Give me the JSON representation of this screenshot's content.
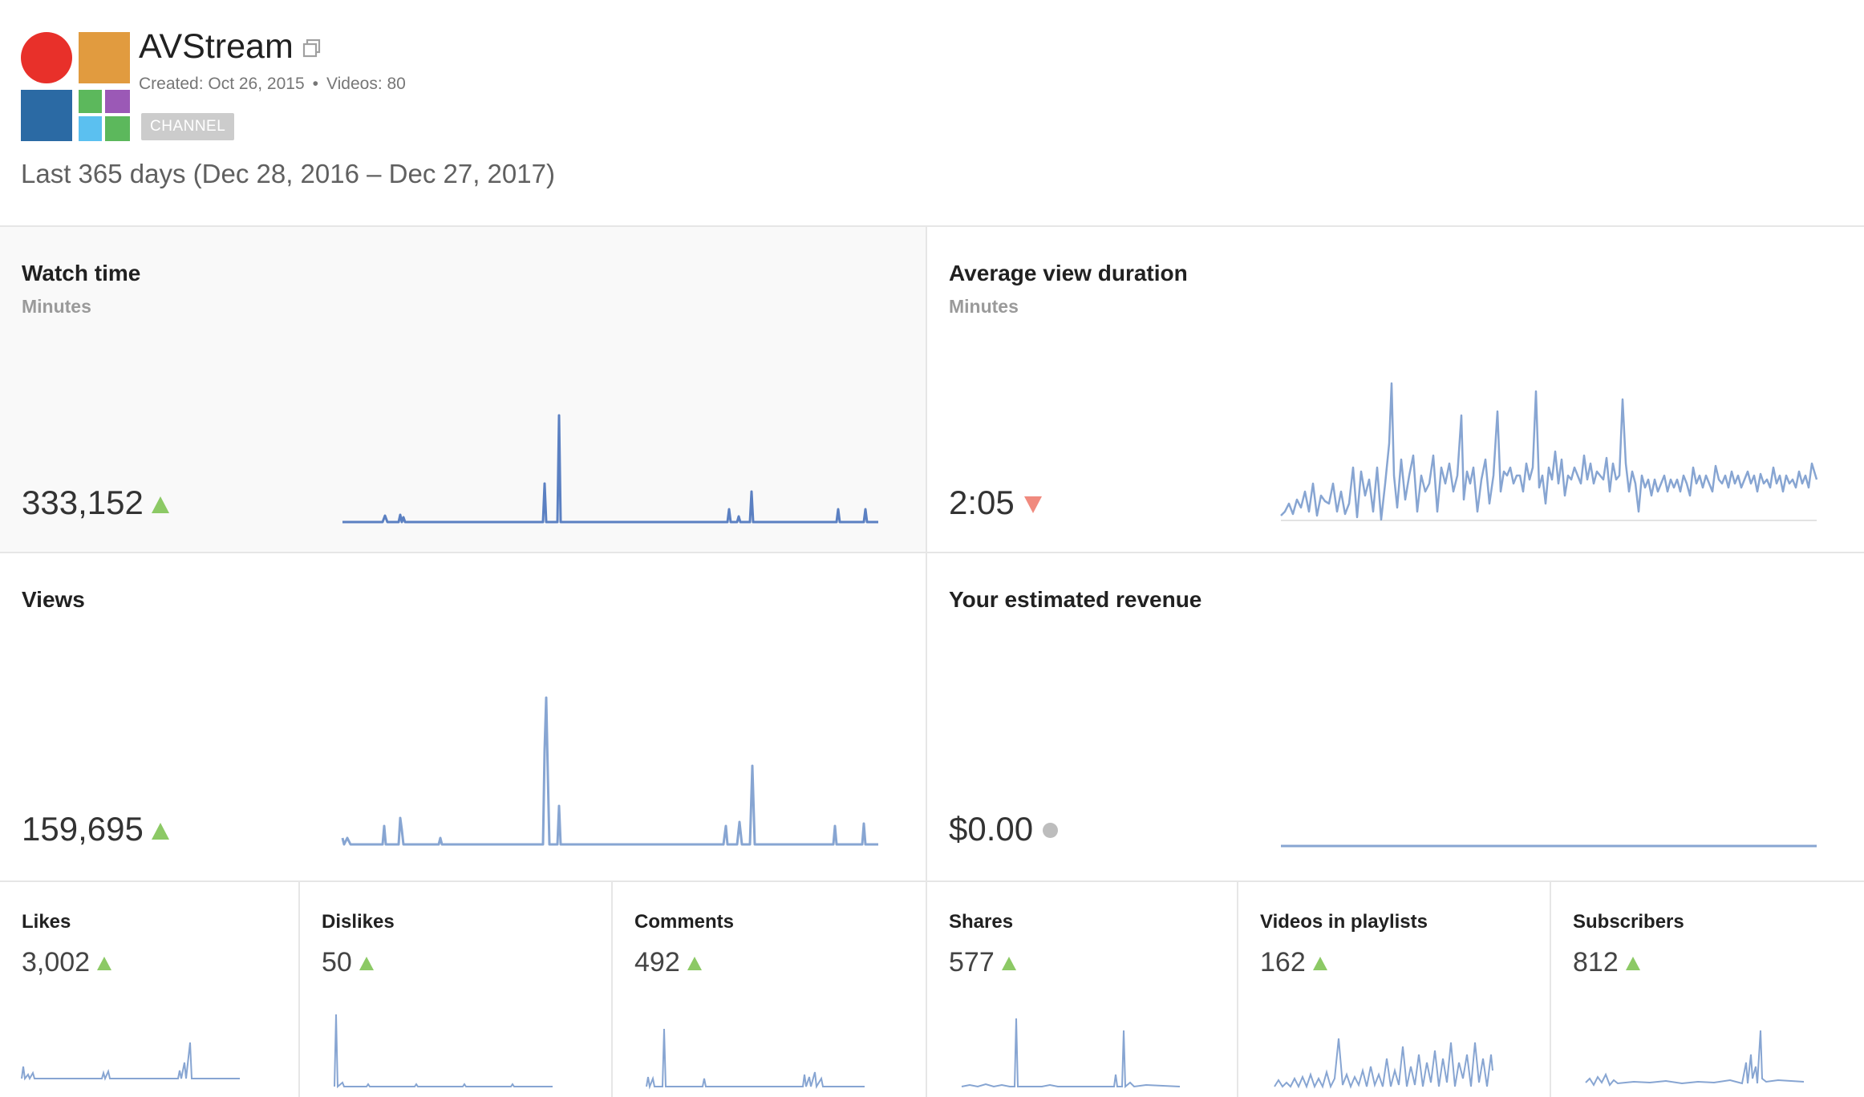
{
  "channel": {
    "name": "AVStream",
    "created": "Created: Oct 26, 2015",
    "videos": "Videos: 80",
    "badge": "CHANNEL",
    "colors": {
      "red": "#e8302a",
      "orange": "#e19b3f",
      "blue": "#2b6aa4",
      "green": "#5cb85c",
      "purple": "#9b59b6",
      "lightblue": "#5bc0f0"
    }
  },
  "date_range": "Last 365 days (Dec 28, 2016 – Dec 27, 2017)",
  "panels": {
    "watch_time": {
      "title": "Watch time",
      "subtitle": "Minutes",
      "value": "333,152",
      "trend": "up"
    },
    "avg_view_duration": {
      "title": "Average view duration",
      "subtitle": "Minutes",
      "value": "2:05",
      "trend": "down"
    },
    "views": {
      "title": "Views",
      "value": "159,695",
      "trend": "up"
    },
    "revenue": {
      "title": "Your estimated revenue",
      "value": "$0.00",
      "trend": "neutral"
    }
  },
  "metrics": [
    {
      "title": "Likes",
      "value": "3,002",
      "trend": "up"
    },
    {
      "title": "Dislikes",
      "value": "50",
      "trend": "up"
    },
    {
      "title": "Comments",
      "value": "492",
      "trend": "up"
    },
    {
      "title": "Shares",
      "value": "577",
      "trend": "up"
    },
    {
      "title": "Videos in playlists",
      "value": "162",
      "trend": "up"
    },
    {
      "title": "Subscribers",
      "value": "812",
      "trend": "up"
    }
  ],
  "colors": {
    "line": "#87a5d2",
    "line_dark": "#5b80c2",
    "up": "#8cc965",
    "down": "#f08a7e",
    "neutral": "#bdbdbd"
  },
  "icons": {
    "external": "external-link-icon"
  }
}
